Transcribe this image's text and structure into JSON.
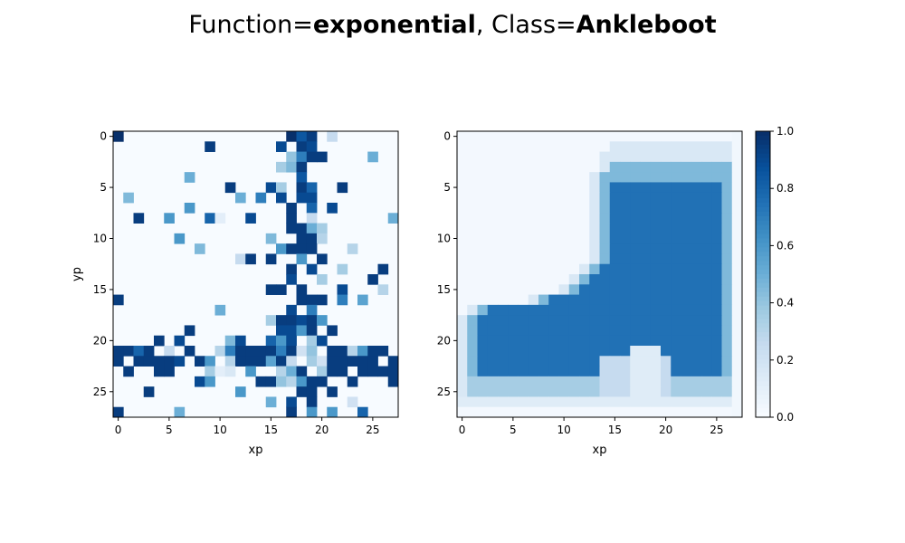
{
  "figure": {
    "title": {
      "prefix1": "Function=",
      "value1": "exponential",
      "sep": ", ",
      "prefix2": "Class=",
      "value2": "Ankleboot"
    }
  },
  "colors": {
    "cmap": [
      "#f7fbff",
      "#deebf7",
      "#c6dbef",
      "#9ecae1",
      "#6baed6",
      "#4292c6",
      "#2171b5",
      "#08519c",
      "#08306b"
    ]
  },
  "chart_data": [
    {
      "type": "heatmap",
      "name": "binary-sample",
      "xlabel": "xp",
      "ylabel": "yp",
      "xlim": [
        -0.5,
        27.5
      ],
      "ylim": [
        27.5,
        -0.5
      ],
      "xticks": [
        0,
        5,
        10,
        15,
        20,
        25
      ],
      "yticks": [
        0,
        5,
        10,
        15,
        20,
        25
      ],
      "grid_rows": 28,
      "grid_cols": 28,
      "pixels": [
        [
          0,
          0,
          17,
          1
        ],
        [
          0,
          18,
          0.85
        ],
        [
          0,
          19,
          0.95
        ],
        [
          0,
          21,
          0.25
        ],
        [
          1,
          9,
          0.95
        ],
        [
          1,
          16,
          0.9
        ],
        [
          1,
          18,
          0.95
        ],
        [
          1,
          19,
          0.9
        ],
        [
          2,
          17,
          0.4
        ],
        [
          2,
          18,
          0.7
        ],
        [
          2,
          19,
          0.95
        ],
        [
          2,
          20,
          0.95
        ],
        [
          2,
          25,
          0.5
        ],
        [
          3,
          16,
          0.35
        ],
        [
          3,
          17,
          0.45
        ],
        [
          3,
          18,
          0.95
        ],
        [
          4,
          7,
          0.5
        ],
        [
          4,
          18,
          0.85
        ],
        [
          5,
          11,
          0.95
        ],
        [
          5,
          15,
          0.9
        ],
        [
          5,
          16,
          0.35
        ],
        [
          5,
          18,
          0.95
        ],
        [
          5,
          19,
          0.8
        ],
        [
          5,
          22,
          0.95
        ],
        [
          6,
          1,
          0.45
        ],
        [
          6,
          12,
          0.5
        ],
        [
          6,
          14,
          0.7
        ],
        [
          6,
          16,
          0.9
        ],
        [
          6,
          18,
          0.9
        ],
        [
          6,
          19,
          0.9
        ],
        [
          7,
          7,
          0.6
        ],
        [
          7,
          17,
          0.95
        ],
        [
          7,
          19,
          0.8
        ],
        [
          7,
          21,
          0.9
        ],
        [
          8,
          2,
          0.95
        ],
        [
          8,
          5,
          0.6
        ],
        [
          8,
          9,
          0.8
        ],
        [
          8,
          10,
          0.1
        ],
        [
          8,
          13,
          0.9
        ],
        [
          8,
          17,
          0.95
        ],
        [
          8,
          19,
          0.25
        ],
        [
          8,
          27,
          0.5
        ],
        [
          9,
          17,
          0.95
        ],
        [
          9,
          18,
          0.95
        ],
        [
          9,
          19,
          0.5
        ],
        [
          9,
          20,
          0.35
        ],
        [
          10,
          6,
          0.6
        ],
        [
          10,
          15,
          0.45
        ],
        [
          10,
          18,
          0.95
        ],
        [
          10,
          19,
          0.95
        ],
        [
          10,
          20,
          0.3
        ],
        [
          11,
          8,
          0.45
        ],
        [
          11,
          16,
          0.6
        ],
        [
          11,
          17,
          0.95
        ],
        [
          11,
          18,
          0.95
        ],
        [
          11,
          19,
          0.95
        ],
        [
          11,
          23,
          0.3
        ],
        [
          12,
          12,
          0.25
        ],
        [
          12,
          13,
          0.95
        ],
        [
          12,
          15,
          0.95
        ],
        [
          12,
          18,
          0.6
        ],
        [
          12,
          20,
          0.95
        ],
        [
          13,
          17,
          0.95
        ],
        [
          13,
          19,
          0.9
        ],
        [
          13,
          22,
          0.35
        ],
        [
          13,
          26,
          0.95
        ],
        [
          14,
          17,
          0.9
        ],
        [
          14,
          20,
          0.35
        ],
        [
          14,
          25,
          0.95
        ],
        [
          15,
          15,
          0.95
        ],
        [
          15,
          16,
          0.95
        ],
        [
          15,
          18,
          0.95
        ],
        [
          15,
          22,
          0.9
        ],
        [
          15,
          26,
          0.3
        ],
        [
          16,
          0,
          0.95
        ],
        [
          16,
          18,
          0.95
        ],
        [
          16,
          19,
          0.95
        ],
        [
          16,
          20,
          0.95
        ],
        [
          16,
          22,
          0.7
        ],
        [
          16,
          24,
          0.55
        ],
        [
          17,
          10,
          0.5
        ],
        [
          17,
          17,
          0.9
        ],
        [
          17,
          19,
          0.7
        ],
        [
          18,
          15,
          0.35
        ],
        [
          18,
          16,
          0.95
        ],
        [
          18,
          17,
          0.95
        ],
        [
          18,
          18,
          0.9
        ],
        [
          18,
          19,
          0.95
        ],
        [
          18,
          20,
          0.6
        ],
        [
          19,
          7,
          0.95
        ],
        [
          19,
          16,
          0.9
        ],
        [
          19,
          17,
          0.9
        ],
        [
          19,
          18,
          0.6
        ],
        [
          19,
          19,
          0.95
        ],
        [
          19,
          21,
          0.95
        ],
        [
          20,
          4,
          0.95
        ],
        [
          20,
          6,
          0.9
        ],
        [
          20,
          11,
          0.45
        ],
        [
          20,
          12,
          0.9
        ],
        [
          20,
          15,
          0.8
        ],
        [
          20,
          16,
          0.6
        ],
        [
          20,
          17,
          0.9
        ],
        [
          20,
          19,
          0.35
        ],
        [
          20,
          20,
          0.9
        ],
        [
          21,
          0,
          0.95
        ],
        [
          21,
          1,
          0.95
        ],
        [
          21,
          2,
          0.8
        ],
        [
          21,
          3,
          0.95
        ],
        [
          21,
          5,
          0.25
        ],
        [
          21,
          7,
          0.95
        ],
        [
          21,
          10,
          0.3
        ],
        [
          21,
          11,
          0.7
        ],
        [
          21,
          12,
          0.95
        ],
        [
          21,
          13,
          0.95
        ],
        [
          21,
          14,
          0.95
        ],
        [
          21,
          15,
          0.95
        ],
        [
          21,
          16,
          0.7
        ],
        [
          21,
          17,
          0.95
        ],
        [
          21,
          18,
          0.2
        ],
        [
          21,
          19,
          0.4
        ],
        [
          21,
          21,
          0.95
        ],
        [
          21,
          22,
          0.95
        ],
        [
          21,
          23,
          0.3
        ],
        [
          21,
          24,
          0.6
        ],
        [
          21,
          25,
          0.95
        ],
        [
          21,
          26,
          0.95
        ],
        [
          22,
          0,
          0.95
        ],
        [
          22,
          2,
          0.95
        ],
        [
          22,
          3,
          0.95
        ],
        [
          22,
          4,
          0.95
        ],
        [
          22,
          5,
          0.95
        ],
        [
          22,
          6,
          0.9
        ],
        [
          22,
          8,
          0.95
        ],
        [
          22,
          9,
          0.6
        ],
        [
          22,
          11,
          0.3
        ],
        [
          22,
          12,
          0.95
        ],
        [
          22,
          13,
          0.95
        ],
        [
          22,
          14,
          0.95
        ],
        [
          22,
          15,
          0.55
        ],
        [
          22,
          16,
          0.95
        ],
        [
          22,
          17,
          0.25
        ],
        [
          22,
          19,
          0.35
        ],
        [
          22,
          20,
          0.2
        ],
        [
          22,
          21,
          0.95
        ],
        [
          22,
          22,
          0.95
        ],
        [
          22,
          23,
          0.95
        ],
        [
          22,
          24,
          0.95
        ],
        [
          22,
          25,
          0.95
        ],
        [
          22,
          27,
          0.95
        ],
        [
          23,
          1,
          0.95
        ],
        [
          23,
          4,
          0.95
        ],
        [
          23,
          5,
          0.95
        ],
        [
          23,
          9,
          0.35
        ],
        [
          23,
          10,
          0.1
        ],
        [
          23,
          11,
          0.15
        ],
        [
          23,
          13,
          0.6
        ],
        [
          23,
          16,
          0.3
        ],
        [
          23,
          17,
          0.5
        ],
        [
          23,
          18,
          0.95
        ],
        [
          23,
          20,
          0.35
        ],
        [
          23,
          21,
          0.95
        ],
        [
          23,
          22,
          0.95
        ],
        [
          23,
          24,
          0.95
        ],
        [
          23,
          25,
          0.95
        ],
        [
          23,
          26,
          0.95
        ],
        [
          23,
          27,
          0.95
        ],
        [
          24,
          8,
          0.9
        ],
        [
          24,
          9,
          0.6
        ],
        [
          24,
          14,
          0.95
        ],
        [
          24,
          15,
          0.95
        ],
        [
          24,
          16,
          0.4
        ],
        [
          24,
          17,
          0.3
        ],
        [
          24,
          18,
          0.6
        ],
        [
          24,
          19,
          0.95
        ],
        [
          24,
          20,
          0.95
        ],
        [
          24,
          23,
          0.95
        ],
        [
          24,
          27,
          0.95
        ],
        [
          25,
          3,
          0.95
        ],
        [
          25,
          12,
          0.6
        ],
        [
          25,
          18,
          0.95
        ],
        [
          25,
          19,
          0.95
        ],
        [
          25,
          21,
          0.95
        ],
        [
          26,
          15,
          0.5
        ],
        [
          26,
          17,
          0.9
        ],
        [
          26,
          19,
          0.95
        ],
        [
          26,
          23,
          0.2
        ],
        [
          27,
          0,
          0.95
        ],
        [
          27,
          6,
          0.5
        ],
        [
          27,
          17,
          0.95
        ],
        [
          27,
          19,
          0.6
        ],
        [
          27,
          21,
          0.6
        ],
        [
          27,
          24,
          0.8
        ]
      ]
    },
    {
      "type": "heatmap",
      "name": "exponential-fit",
      "xlabel": "xp",
      "ylabel": "",
      "xlim": [
        -0.5,
        27.5
      ],
      "ylim": [
        27.5,
        -0.5
      ],
      "xticks": [
        0,
        5,
        10,
        15,
        20,
        25
      ],
      "yticks": [
        0,
        5,
        10,
        15,
        20,
        25
      ],
      "grid_rows": 28,
      "grid_cols": 28,
      "shape": {
        "upper_left_x": [
          17,
          16,
          15,
          15,
          14,
          14,
          14,
          14,
          14,
          14,
          14,
          14,
          14,
          13,
          12,
          11,
          8,
          2,
          1,
          1,
          1,
          1,
          1,
          1,
          1,
          1,
          1,
          1
        ],
        "upper_right_x": [
          26,
          26,
          26,
          26,
          26,
          26,
          26,
          26,
          26,
          26,
          26,
          26,
          26,
          26,
          26,
          26,
          26,
          26,
          26,
          26,
          26,
          26,
          26,
          26,
          26,
          26,
          26,
          26
        ],
        "body_top_row": 5,
        "body_bottom_row": 24,
        "inner_value": 0.75,
        "edge_value": 0.45,
        "outer_halo_value": 0.15
      },
      "colorbar": {
        "vmin": 0.0,
        "vmax": 1.0,
        "ticks": [
          "0.0",
          "0.2",
          "0.4",
          "0.6",
          "0.8",
          "1.0"
        ]
      }
    }
  ]
}
